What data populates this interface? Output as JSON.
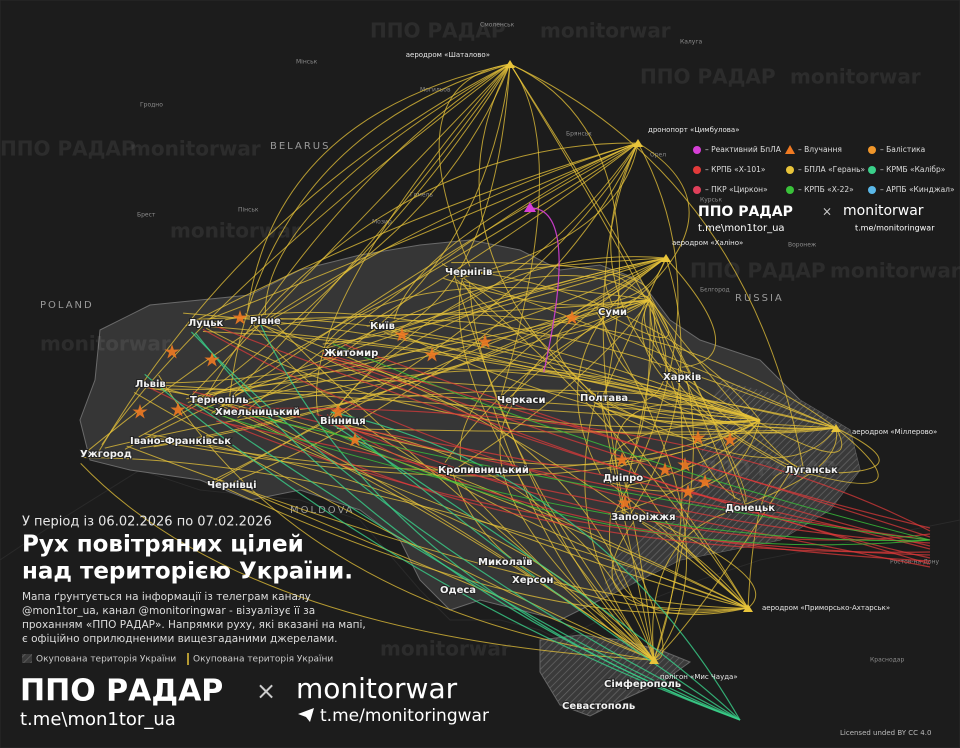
{
  "header": {
    "period": "У період із 06.02.2026 по 07.02.2026",
    "title_lines": [
      "Рух повітряних цілей",
      "над територією України."
    ],
    "description_lines": [
      "Мапа ґрунтується на інформації із телеграм каналу",
      "@mon1tor_ua, канал @monitoringwar - візуалізує її за",
      "проханням «ППО РАДАР». Напрямки руху, які вказані на мапі,",
      "є офіційно оприлюдненими вищезгаданими джерелами."
    ]
  },
  "occupied_legend": [
    "Окупована територія України",
    "Окупована територія України"
  ],
  "brand": {
    "ppo": "ППО РАДАР",
    "times": "×",
    "monitorwar": "monitorwar",
    "tg1": "t.me\\mon1tor_ua",
    "tg2": "t.me/monitoringwar"
  },
  "license": "Licensed unded BY CC 4.0",
  "legend": {
    "items": [
      {
        "label": "– Реактивний БпЛА",
        "color": "#d63fd6"
      },
      {
        "label": "– Влучання",
        "color": "#f07a22"
      },
      {
        "label": "– Балістика",
        "color": "#f0962a"
      },
      {
        "label": "– КРПБ «Х-101»",
        "color": "#e23a3a"
      },
      {
        "label": "– БПЛА «Герань»",
        "color": "#e8c43a"
      },
      {
        "label": "– КРМБ «Калібр»",
        "color": "#3ad08a"
      },
      {
        "label": "– ПКР «Циркон»",
        "color": "#e0405a"
      },
      {
        "label": "– КРПБ «Х-22»",
        "color": "#3ac23a"
      },
      {
        "label": "– АРПБ «Кинджал»",
        "color": "#5ab8e8"
      }
    ]
  },
  "countries": [
    "BELARUS",
    "POLAND",
    "RUSSIA",
    "MOLDOVA"
  ],
  "cities": [
    "Київ",
    "Луцьк",
    "Рівне",
    "Львів",
    "Тернопіль",
    "Хмельницький",
    "Вінниця",
    "Житомир",
    "Чернігів",
    "Суми",
    "Харків",
    "Полтава",
    "Черкаси",
    "Кропивницький",
    "Дніпро",
    "Запоріжжя",
    "Донецьк",
    "Луганськ",
    "Івано-Франківськ",
    "Ужгород",
    "Чернівці",
    "Миколаїв",
    "Херсон",
    "Одеса",
    "Сімферополь",
    "Севастополь"
  ],
  "airfields": [
    "аеродром «Шаталово»",
    "дронопорт «Цимбулова»",
    "аеродром «Халіно»",
    "аеродром «Міллерово»",
    "аеродром «Приморсько-Ахтарськ»",
    "полігон «Мис Чауда»"
  ],
  "minor_places": [
    "Мінськ",
    "Гродно",
    "Могильов",
    "Гомель",
    "Брест",
    "Пінськ",
    "Мозир",
    "Смоленськ",
    "Калуга",
    "Брянськ",
    "Орел",
    "Курськ",
    "Бєлгород",
    "Воронеж",
    "Ростов-на-Дону",
    "Краснодар"
  ]
}
